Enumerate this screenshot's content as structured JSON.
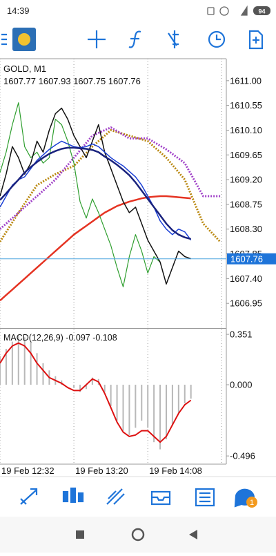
{
  "status_bar": {
    "time": "14:39",
    "battery": "94"
  },
  "bottom_nav": {
    "badge": "1"
  },
  "chart_data": [
    {
      "type": "line",
      "title": "GOLD, M1",
      "subtitle": "1607.77 1607.93 1607.75 1607.76",
      "x": [
        0,
        4,
        8,
        12,
        16,
        20,
        24,
        28,
        32,
        36,
        40,
        44,
        48,
        52,
        56,
        60,
        64,
        68,
        72,
        76,
        80,
        84,
        88,
        92,
        96,
        100,
        104,
        108,
        112,
        116,
        120,
        124
      ],
      "xlim": [
        0,
        147
      ],
      "xticks": [
        {
          "value": 0,
          "label": "19 Feb 12:32"
        },
        {
          "value": 48,
          "label": "19 Feb 13:20"
        },
        {
          "value": 96,
          "label": "19 Feb 14:08"
        },
        144
      ],
      "ylim": [
        1606.5,
        1611.4
      ],
      "yticks": [
        {
          "value": 1611,
          "label": "1611.00"
        },
        1610.55,
        {
          "value": 1610.1,
          "label": "1610.10"
        },
        1609.65,
        {
          "value": 1609.2,
          "label": "1609.20"
        },
        1608.75,
        {
          "value": 1608.3,
          "label": "1608.30"
        },
        1607.85,
        {
          "value": 1607.4,
          "label": "1607.40"
        },
        1606.95
      ],
      "last_price": 1607.76,
      "series": [
        {
          "color": "#e53322",
          "width": 2.5,
          "values": [
            1607.0,
            1607.1,
            1607.2,
            1607.3,
            1607.4,
            1607.5,
            1607.6,
            1607.7,
            1607.8,
            1607.9,
            1608.0,
            1608.1,
            1608.2,
            1608.28,
            1608.36,
            1608.44,
            1608.52,
            1608.6,
            1608.66,
            1608.72,
            1608.76,
            1608.8,
            1608.83,
            1608.86,
            1608.88,
            1608.89,
            1608.9,
            1608.9,
            1608.89,
            1608.88,
            1608.87,
            1608.86
          ]
        },
        {
          "color": "#b8860b",
          "width": 3,
          "dash": true,
          "x": [
            0,
            12,
            24,
            36,
            48,
            60,
            72,
            84,
            96,
            108,
            120,
            132,
            143
          ],
          "values": [
            1608.07,
            1608.6,
            1609.1,
            1609.3,
            1609.45,
            1609.8,
            1610.1,
            1610.0,
            1609.9,
            1609.6,
            1609.2,
            1608.4,
            1608.07
          ]
        },
        {
          "color": "#a040c8",
          "width": 3,
          "dash": true,
          "x": [
            0,
            12,
            24,
            36,
            48,
            60,
            72,
            84,
            96,
            108,
            120,
            132,
            143
          ],
          "values": [
            1608.3,
            1608.6,
            1608.9,
            1609.2,
            1609.6,
            1610.0,
            1610.15,
            1609.95,
            1609.95,
            1609.75,
            1609.5,
            1608.9,
            1608.9
          ]
        },
        {
          "color": "#2e9e2e",
          "width": 1.2,
          "values": [
            1609.33,
            1609.7,
            1610.2,
            1610.6,
            1609.8,
            1609.6,
            1609.7,
            1609.5,
            1609.6,
            1610.3,
            1610.2,
            1609.9,
            1609.5,
            1608.8,
            1608.5,
            1608.85,
            1608.6,
            1608.3,
            1608.0,
            1607.6,
            1607.25,
            1607.8,
            1608.2,
            1607.9,
            1607.5,
            1607.8,
            1607.7,
            null,
            null,
            null,
            null,
            null
          ]
        },
        {
          "color": "#111111",
          "width": 1.5,
          "values": [
            1608.9,
            1609.3,
            1609.8,
            1609.6,
            1609.3,
            1609.5,
            1609.9,
            1609.7,
            1610.1,
            1610.4,
            1610.5,
            1610.3,
            1610.0,
            1609.8,
            1609.6,
            1609.9,
            1610.2,
            1609.7,
            1609.4,
            1609.1,
            1608.8,
            1608.6,
            1608.7,
            1608.4,
            1608.1,
            1607.9,
            1607.7,
            1607.3,
            1607.6,
            1607.9,
            1607.8,
            1607.76
          ]
        },
        {
          "color": "#1a3fd6",
          "width": 1.5,
          "values": [
            1608.7,
            1608.9,
            1609.1,
            1609.2,
            1609.25,
            1609.4,
            1609.55,
            1609.65,
            1609.75,
            1609.83,
            1609.9,
            1609.85,
            1609.8,
            1609.78,
            1609.8,
            1609.85,
            1609.8,
            1609.7,
            1609.6,
            1609.52,
            1609.45,
            1609.35,
            1609.25,
            1609.1,
            1608.9,
            1608.7,
            1608.45,
            1608.3,
            1608.2,
            1608.3,
            1608.25,
            1608.1
          ]
        },
        {
          "color": "#1a237e",
          "width": 2.5,
          "values": [
            1608.83,
            1608.95,
            1609.08,
            1609.2,
            1609.33,
            1609.43,
            1609.52,
            1609.6,
            1609.67,
            1609.72,
            1609.76,
            1609.78,
            1609.78,
            1609.77,
            1609.76,
            1609.74,
            1609.7,
            1609.62,
            1609.55,
            1609.47,
            1609.38,
            1609.28,
            1609.15,
            1609.0,
            1608.85,
            1608.7,
            1608.55,
            1608.4,
            1608.28,
            1608.2,
            1608.15,
            1608.12
          ]
        }
      ]
    },
    {
      "type": "bar",
      "title": "MACD(12,26,9) -0.097 -0.108",
      "x": [
        0,
        4,
        8,
        12,
        16,
        20,
        24,
        28,
        32,
        36,
        40,
        44,
        48,
        52,
        56,
        60,
        64,
        68,
        72,
        76,
        80,
        84,
        88,
        92,
        96,
        100,
        104,
        108,
        112,
        116,
        120,
        124
      ],
      "xlim": [
        0,
        147
      ],
      "ylim": [
        -0.553,
        0.385
      ],
      "yticks": [
        0.351,
        {
          "value": 0,
          "label": "0.000"
        },
        -0.496
      ],
      "series": [
        {
          "type": "bar",
          "color": "#b8b8b8",
          "values": [
            0.2,
            0.25,
            0.3,
            0.34,
            0.33,
            0.3,
            0.22,
            0.15,
            0.1,
            0.06,
            0.03,
            0.0,
            -0.02,
            -0.05,
            -0.03,
            0.05,
            0.04,
            -0.05,
            -0.15,
            -0.25,
            -0.32,
            -0.35,
            -0.3,
            -0.25,
            -0.3,
            -0.4,
            -0.45,
            -0.38,
            -0.28,
            -0.2,
            -0.13,
            -0.097
          ]
        },
        {
          "type": "line",
          "color": "#dd1111",
          "width": 2,
          "values": [
            0.15,
            0.22,
            0.27,
            0.29,
            0.27,
            0.22,
            0.15,
            0.1,
            0.05,
            0.03,
            0.01,
            -0.02,
            -0.04,
            -0.04,
            0.0,
            0.04,
            0.02,
            -0.06,
            -0.16,
            -0.26,
            -0.33,
            -0.36,
            -0.35,
            -0.32,
            -0.32,
            -0.36,
            -0.4,
            -0.36,
            -0.28,
            -0.2,
            -0.14,
            -0.108
          ]
        }
      ]
    }
  ]
}
